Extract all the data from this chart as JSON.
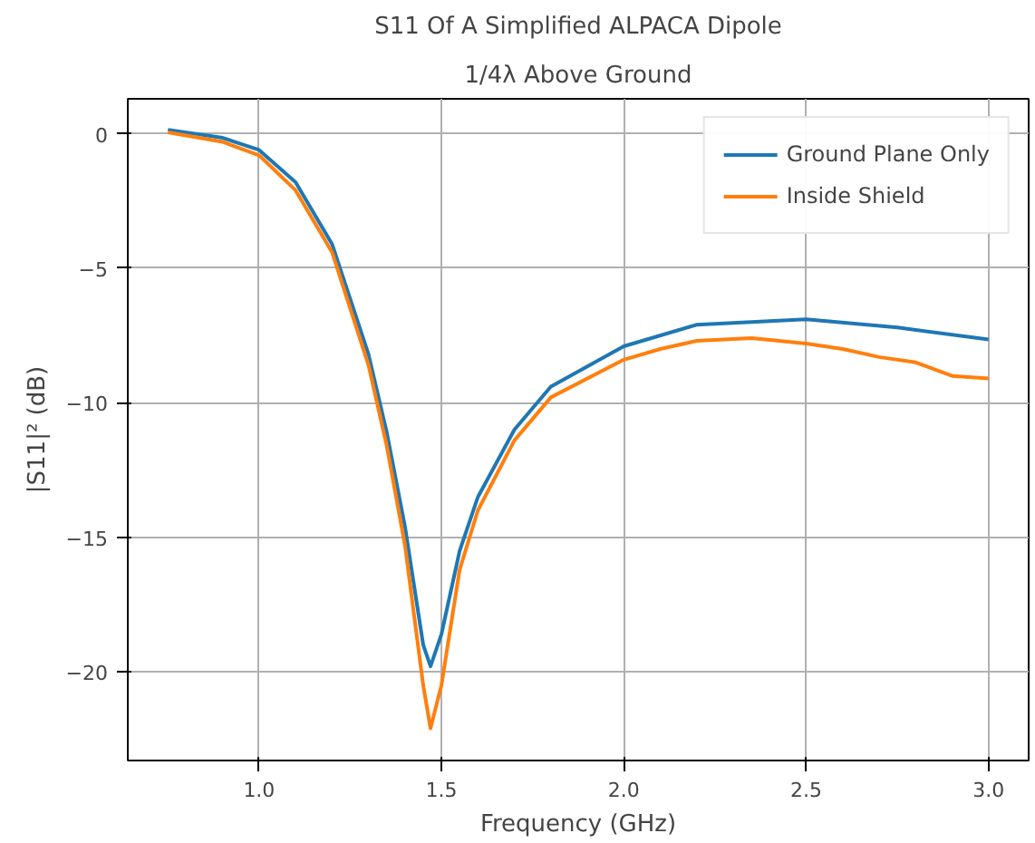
{
  "chart_data": {
    "type": "line",
    "title": "S11 Of A Simplified ALPACA Dipole",
    "subtitle": "1/4λ Above Ground",
    "xlabel": "Frequency (GHz)",
    "ylabel": "|S11|² (dB)",
    "xlim": [
      0.64,
      3.11
    ],
    "ylim": [
      -23.3,
      1.3
    ],
    "xticks": [
      {
        "value": 1,
        "label": "1.0"
      },
      1.5,
      {
        "value": 2,
        "label": "2.0"
      },
      2.5,
      {
        "value": 3,
        "label": "3.0"
      }
    ],
    "yticks": [
      0,
      -5,
      -10,
      -15,
      -20
    ],
    "grid": true,
    "legend": "top right",
    "line_style": "solid",
    "marker": "none",
    "series": [
      {
        "name": "Ground Plane Only",
        "color": "#1f77b4",
        "x": [
          0.75,
          0.9,
          1.0,
          1.1,
          1.2,
          1.3,
          1.35,
          1.4,
          1.45,
          1.47,
          1.5,
          1.55,
          1.6,
          1.7,
          1.8,
          2.0,
          2.2,
          2.5,
          2.75,
          3.0
        ],
        "values": [
          0.15,
          -0.15,
          -0.6,
          -1.8,
          -4.1,
          -8.2,
          -11.1,
          -14.6,
          -19.0,
          -19.8,
          -18.6,
          -15.5,
          -13.5,
          -11.0,
          -9.4,
          -7.9,
          -7.1,
          -6.9,
          -7.2,
          -7.65
        ]
      },
      {
        "name": "Inside Shield",
        "color": "#ff7f0e",
        "x": [
          0.75,
          0.9,
          1.0,
          1.1,
          1.2,
          1.3,
          1.35,
          1.4,
          1.45,
          1.47,
          1.5,
          1.55,
          1.6,
          1.7,
          1.8,
          2.0,
          2.1,
          2.2,
          2.35,
          2.5,
          2.6,
          2.7,
          2.8,
          2.9,
          3.0
        ],
        "values": [
          0.05,
          -0.3,
          -0.8,
          -2.1,
          -4.4,
          -8.6,
          -11.6,
          -15.3,
          -20.5,
          -22.1,
          -20.5,
          -16.2,
          -14.0,
          -11.4,
          -9.8,
          -8.4,
          -8.0,
          -7.7,
          -7.6,
          -7.8,
          -8.0,
          -8.3,
          -8.5,
          -9.0,
          -9.1
        ]
      }
    ]
  }
}
